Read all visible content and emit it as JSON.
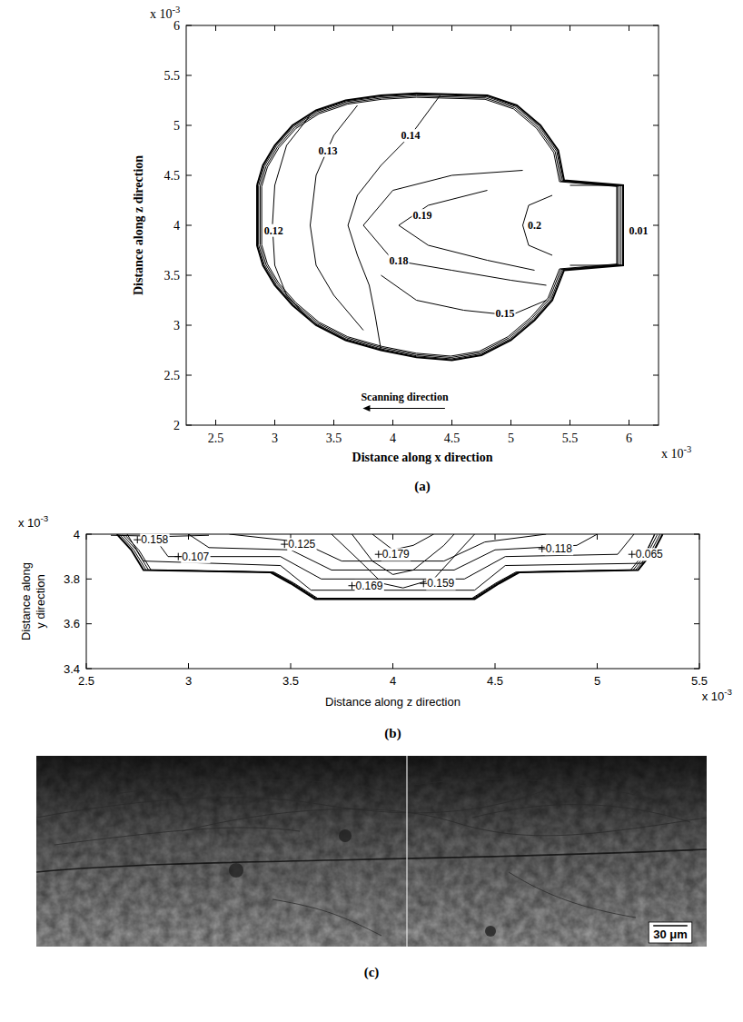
{
  "chart_data": [
    {
      "type": "contour",
      "panel_label": "(a)",
      "x_label": "Distance along x direction",
      "y_label": "Distance along z direction",
      "xlim": [
        2.25,
        6.25
      ],
      "ylim": [
        2,
        6
      ],
      "xticks": [
        2.5,
        3,
        3.5,
        4,
        4.5,
        5,
        5.5,
        6
      ],
      "yticks": [
        2,
        2.5,
        3,
        3.5,
        4,
        4.5,
        5,
        5.5,
        6
      ],
      "x_multiplier": {
        "base": "x 10",
        "exponent": "-3"
      },
      "y_multiplier": {
        "base": "x 10",
        "exponent": "-3"
      },
      "outline": {
        "x": [
          2.85,
          2.9,
          3.0,
          3.15,
          3.35,
          3.6,
          3.9,
          4.2,
          4.8,
          5.05,
          5.25,
          5.4,
          5.45,
          5.95,
          5.95,
          5.45,
          5.35,
          5.2,
          5.0,
          4.75,
          4.5,
          4.2,
          3.9,
          3.6,
          3.35,
          3.15,
          3.0,
          2.9,
          2.85,
          2.85
        ],
        "y": [
          4.4,
          4.6,
          4.8,
          5.0,
          5.15,
          5.25,
          5.3,
          5.32,
          5.3,
          5.2,
          5.0,
          4.75,
          4.45,
          4.4,
          3.6,
          3.55,
          3.25,
          3.05,
          2.85,
          2.7,
          2.65,
          2.68,
          2.75,
          2.85,
          3.0,
          3.2,
          3.4,
          3.6,
          3.8,
          4.4
        ]
      },
      "contours": [
        {
          "level": 0.12,
          "x": [
            3.3,
            3.1,
            3.0,
            2.98,
            3.0,
            3.1,
            3.3
          ],
          "y": [
            5.1,
            4.8,
            4.4,
            4.0,
            3.6,
            3.3,
            3.05
          ],
          "label_x": 2.99,
          "label_y": 3.95
        },
        {
          "level": 0.13,
          "x": [
            3.7,
            3.5,
            3.35,
            3.3,
            3.35,
            3.5,
            3.75
          ],
          "y": [
            5.2,
            4.9,
            4.5,
            4.0,
            3.6,
            3.3,
            2.95
          ],
          "label_x": 3.45,
          "label_y": 4.75
        },
        {
          "level": 0.14,
          "x": [
            4.4,
            4.15,
            3.9,
            3.7,
            3.62,
            3.7,
            3.8,
            3.85,
            3.9
          ],
          "y": [
            5.3,
            4.9,
            4.6,
            4.3,
            4.0,
            3.7,
            3.4,
            3.1,
            2.75
          ],
          "label_x": 4.15,
          "label_y": 4.9
        },
        {
          "level": 0.18,
          "x": [
            5.1,
            4.5,
            4.0,
            3.75,
            4.0,
            4.5,
            5.0,
            5.3
          ],
          "y": [
            4.55,
            4.5,
            4.35,
            4.0,
            3.65,
            3.55,
            3.45,
            3.4
          ],
          "label_x": 4.05,
          "label_y": 3.65
        },
        {
          "level": 0.19,
          "x": [
            4.8,
            4.3,
            4.05,
            4.3,
            4.8,
            5.2
          ],
          "y": [
            4.35,
            4.2,
            4.0,
            3.8,
            3.65,
            3.55
          ],
          "label_x": 4.25,
          "label_y": 4.1
        },
        {
          "level": 0.15,
          "x": [
            3.9,
            4.2,
            4.6,
            5.0,
            5.3
          ],
          "y": [
            3.5,
            3.25,
            3.15,
            3.1,
            3.25
          ],
          "label_x": 4.95,
          "label_y": 3.12
        },
        {
          "level": 0.2,
          "x": [
            5.35,
            5.15,
            5.1,
            5.15,
            5.35
          ],
          "y": [
            4.3,
            4.2,
            4.0,
            3.8,
            3.7
          ],
          "label_x": 5.2,
          "label_y": 4.0
        },
        {
          "level": 0.01,
          "x": [
            5.5,
            5.9,
            5.9,
            5.5
          ],
          "y": [
            4.4,
            4.4,
            3.6,
            3.6
          ],
          "label_x": 6.08,
          "label_y": 3.95
        }
      ],
      "annotation": {
        "text": "Scanning direction",
        "x": 4.1,
        "y": 2.25
      }
    },
    {
      "type": "contour",
      "panel_label": "(b)",
      "x_label": "Distance along z direction",
      "y_label": "Distance along y direction",
      "xlim": [
        2.5,
        5.5
      ],
      "ylim": [
        3.4,
        4
      ],
      "xticks": [
        2.5,
        3,
        3.5,
        4,
        4.5,
        5,
        5.5
      ],
      "yticks": [
        3.4,
        3.6,
        3.8,
        4
      ],
      "x_multiplier": {
        "base": "x 10",
        "exponent": "-3"
      },
      "y_multiplier": {
        "base": "x 10",
        "exponent": "-3"
      },
      "marker": "plus",
      "outline": {
        "x": [
          2.65,
          2.72,
          2.78,
          3.4,
          3.5,
          3.62,
          4.4,
          4.52,
          4.62,
          5.2,
          5.28,
          5.32
        ],
        "y": [
          4.0,
          3.93,
          3.84,
          3.83,
          3.78,
          3.71,
          3.71,
          3.78,
          3.83,
          3.84,
          3.93,
          4.0
        ]
      },
      "contours": [
        {
          "level": 0.158,
          "x": [
            2.62,
            2.9,
            3.1
          ],
          "y": [
            3.995,
            3.99,
            3.995
          ],
          "label_x": 2.75,
          "label_y": 3.975
        },
        {
          "level": 0.107,
          "x": [
            2.82,
            2.9,
            3.45,
            3.65,
            4.35,
            4.55,
            5.1,
            5.18
          ],
          "y": [
            4.0,
            3.9,
            3.9,
            3.8,
            3.8,
            3.9,
            3.91,
            4.0
          ],
          "label_x": 2.95,
          "label_y": 3.9
        },
        {
          "level": 0.125,
          "x": [
            3.2,
            3.55,
            3.75,
            4.25,
            4.45,
            4.75
          ],
          "y": [
            4.0,
            3.965,
            3.88,
            3.88,
            3.965,
            4.0
          ],
          "label_x": 3.47,
          "label_y": 3.955
        },
        {
          "level": 0.179,
          "x": [
            3.9,
            4.0,
            4.1,
            4.2
          ],
          "y": [
            4.0,
            3.93,
            3.95,
            4.0
          ],
          "label_x": 3.93,
          "label_y": 3.91
        },
        {
          "level": 0.169,
          "x": [
            3.8,
            3.9,
            4.0,
            4.1,
            4.25,
            4.3
          ],
          "y": [
            4.0,
            3.88,
            3.82,
            3.84,
            3.95,
            4.0
          ],
          "label_x": 3.8,
          "label_y": 3.77
        },
        {
          "level": 0.159,
          "x": [
            3.7,
            3.85,
            3.95,
            4.05,
            4.2,
            4.3,
            4.4
          ],
          "y": [
            4.0,
            3.87,
            3.78,
            3.76,
            3.8,
            3.9,
            4.0
          ],
          "label_x": 4.15,
          "label_y": 3.78
        },
        {
          "level": 0.118,
          "x": [
            3.0,
            3.1,
            3.5,
            3.7,
            4.3,
            4.5,
            4.9,
            5.0
          ],
          "y": [
            4.0,
            3.94,
            3.93,
            3.84,
            3.84,
            3.93,
            3.95,
            4.0
          ],
          "label_x": 4.73,
          "label_y": 3.935
        },
        {
          "level": 0.065,
          "x": [
            2.7,
            2.78,
            3.45,
            3.6,
            4.4,
            4.55,
            5.22,
            5.28
          ],
          "y": [
            4.0,
            3.88,
            3.86,
            3.75,
            3.75,
            3.86,
            3.87,
            4.0
          ],
          "label_x": 5.17,
          "label_y": 3.91
        }
      ]
    }
  ],
  "micrograph": {
    "panel_label": "(c)",
    "scale_bar": "30 μm"
  }
}
